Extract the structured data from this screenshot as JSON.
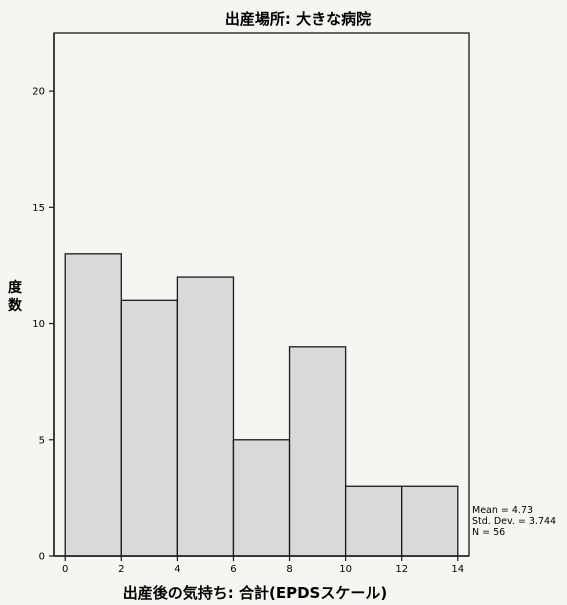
{
  "chart_data": {
    "type": "bar",
    "title": "出産場所: 大きな病院",
    "xlabel": "出産後の気持ち: 合計(EPDSスケール)",
    "ylabel_chars": [
      "度",
      "数"
    ],
    "bin_edges": [
      0,
      2,
      4,
      6,
      8,
      10,
      12,
      14
    ],
    "values": [
      13,
      11,
      12,
      5,
      9,
      3,
      3
    ],
    "x_ticks": [
      0,
      2,
      4,
      6,
      8,
      10,
      12,
      14
    ],
    "y_ticks": [
      0,
      5,
      10,
      15,
      20
    ],
    "xlim": [
      -0.4,
      14.4
    ],
    "ylim": [
      0,
      22.5
    ],
    "bar_color": "#d9d9d9",
    "bar_edge_color": "#1a1a1a",
    "grid": false,
    "stats": {
      "mean": "Mean = 4.73",
      "std": "Std. Dev. = 3.744",
      "n": "N = 56"
    }
  }
}
